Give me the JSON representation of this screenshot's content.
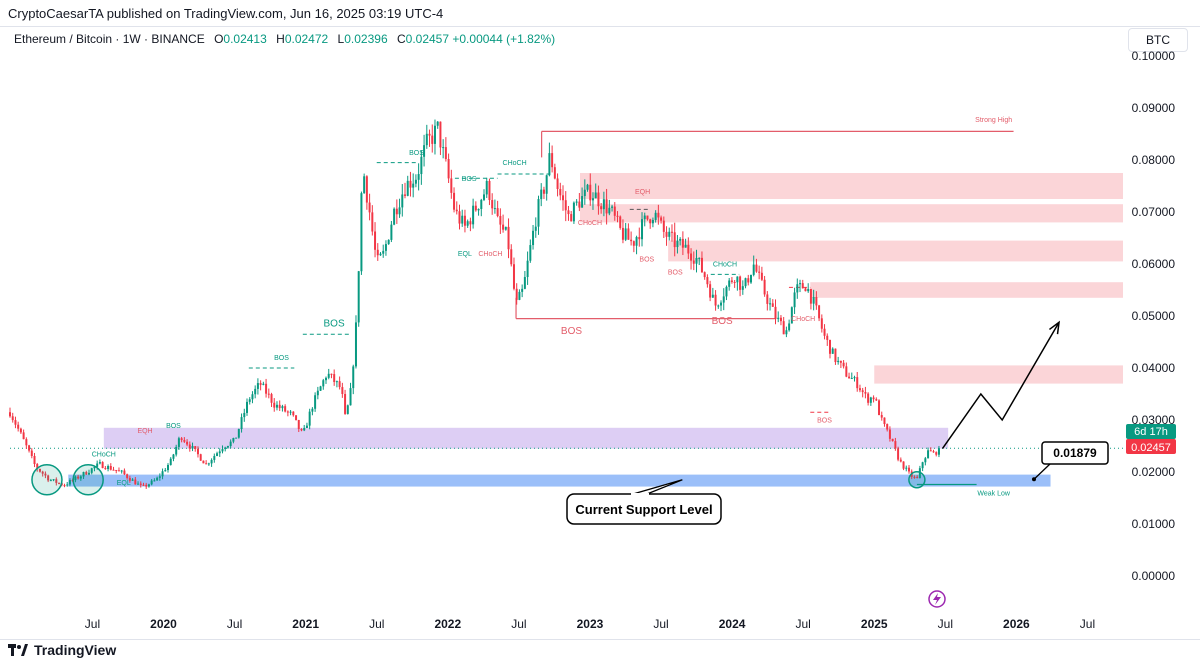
{
  "publish_line": "CryptoCaesarTA published on TradingView.com, Jun 16, 2025 03:19 UTC-4",
  "legend": {
    "symbol": "Ethereum / Bitcoin · 1W · BINANCE",
    "o_label": "O",
    "o": "0.02413",
    "h_label": "H",
    "h": "0.02472",
    "l_label": "L",
    "l": "0.02396",
    "c_label": "C",
    "c": "0.02457",
    "change": "+0.00044 (+1.82%)"
  },
  "currency": "BTC",
  "footer": {
    "brand": "TradingView"
  },
  "colors": {
    "up": "#089981",
    "down": "#f23645",
    "supply": "#fbd5d8",
    "purple": "#d7c6f2",
    "blue": "#8ab4f8",
    "bos_line": "#e35d6a"
  },
  "chart_data": {
    "type": "candlestick",
    "y_axis": {
      "min": 0.0,
      "max": 0.1,
      "ticks": [
        "0.00000",
        "0.01000",
        "0.02000",
        "0.03000",
        "0.04000",
        "0.05000",
        "0.06000",
        "0.07000",
        "0.08000",
        "0.09000",
        "0.10000"
      ]
    },
    "x_axis": {
      "labels": [
        "Jul",
        "2020",
        "Jul",
        "2021",
        "Jul",
        "2022",
        "Jul",
        "2023",
        "Jul",
        "2024",
        "Jul",
        "2025",
        "Jul",
        "2026",
        "Jul"
      ],
      "bold": [
        "2020",
        "2021",
        "2022",
        "2023",
        "2024",
        "2025",
        "2026"
      ],
      "x": [
        2019.5,
        2020.0,
        2020.5,
        2021.0,
        2021.5,
        2022.0,
        2022.5,
        2023.0,
        2023.5,
        2024.0,
        2024.5,
        2025.0,
        2025.5,
        2026.0,
        2026.5
      ]
    },
    "price_path": [
      [
        2018.92,
        0.0315
      ],
      [
        2019.0,
        0.027
      ],
      [
        2019.1,
        0.021
      ],
      [
        2019.2,
        0.0185
      ],
      [
        2019.3,
        0.0175
      ],
      [
        2019.4,
        0.019
      ],
      [
        2019.55,
        0.0215
      ],
      [
        2019.7,
        0.02
      ],
      [
        2019.85,
        0.017
      ],
      [
        2019.95,
        0.0185
      ],
      [
        2020.05,
        0.022
      ],
      [
        2020.12,
        0.027
      ],
      [
        2020.22,
        0.024
      ],
      [
        2020.3,
        0.0215
      ],
      [
        2020.42,
        0.025
      ],
      [
        2020.5,
        0.026
      ],
      [
        2020.6,
        0.034
      ],
      [
        2020.68,
        0.037
      ],
      [
        2020.78,
        0.033
      ],
      [
        2020.9,
        0.031
      ],
      [
        2020.98,
        0.027
      ],
      [
        2021.05,
        0.033
      ],
      [
        2021.15,
        0.039
      ],
      [
        2021.25,
        0.036
      ],
      [
        2021.28,
        0.03
      ],
      [
        2021.32,
        0.036
      ],
      [
        2021.36,
        0.05
      ],
      [
        2021.4,
        0.079
      ],
      [
        2021.45,
        0.07
      ],
      [
        2021.5,
        0.06
      ],
      [
        2021.55,
        0.062
      ],
      [
        2021.62,
        0.07
      ],
      [
        2021.7,
        0.075
      ],
      [
        2021.78,
        0.077
      ],
      [
        2021.85,
        0.083
      ],
      [
        2021.93,
        0.086
      ],
      [
        2022.0,
        0.077
      ],
      [
        2022.05,
        0.07
      ],
      [
        2022.12,
        0.067
      ],
      [
        2022.2,
        0.071
      ],
      [
        2022.28,
        0.075
      ],
      [
        2022.35,
        0.068
      ],
      [
        2022.42,
        0.065
      ],
      [
        2022.48,
        0.052
      ],
      [
        2022.53,
        0.055
      ],
      [
        2022.58,
        0.063
      ],
      [
        2022.62,
        0.069
      ],
      [
        2022.68,
        0.075
      ],
      [
        2022.72,
        0.081
      ],
      [
        2022.78,
        0.074
      ],
      [
        2022.85,
        0.069
      ],
      [
        2022.92,
        0.072
      ],
      [
        2023.0,
        0.074
      ],
      [
        2023.08,
        0.072
      ],
      [
        2023.15,
        0.07
      ],
      [
        2023.22,
        0.066
      ],
      [
        2023.3,
        0.064
      ],
      [
        2023.38,
        0.068
      ],
      [
        2023.45,
        0.07
      ],
      [
        2023.52,
        0.066
      ],
      [
        2023.6,
        0.064
      ],
      [
        2023.68,
        0.063
      ],
      [
        2023.75,
        0.061
      ],
      [
        2023.82,
        0.057
      ],
      [
        2023.88,
        0.052
      ],
      [
        2023.95,
        0.055
      ],
      [
        2024.02,
        0.058
      ],
      [
        2024.08,
        0.055
      ],
      [
        2024.15,
        0.06
      ],
      [
        2024.22,
        0.055
      ],
      [
        2024.3,
        0.05
      ],
      [
        2024.38,
        0.047
      ],
      [
        2024.45,
        0.055
      ],
      [
        2024.52,
        0.056
      ],
      [
        2024.58,
        0.052
      ],
      [
        2024.65,
        0.046
      ],
      [
        2024.72,
        0.042
      ],
      [
        2024.8,
        0.039
      ],
      [
        2024.88,
        0.037
      ],
      [
        2024.95,
        0.034
      ],
      [
        2025.0,
        0.0345
      ],
      [
        2025.05,
        0.03
      ],
      [
        2025.12,
        0.026
      ],
      [
        2025.18,
        0.022
      ],
      [
        2025.25,
        0.0195
      ],
      [
        2025.3,
        0.0185
      ],
      [
        2025.34,
        0.022
      ],
      [
        2025.38,
        0.024
      ],
      [
        2025.42,
        0.0235
      ],
      [
        2025.46,
        0.0245
      ]
    ],
    "last_price": "0.02457",
    "countdown": "6d 17h",
    "target_label": "0.01879",
    "callout": "Current Support Level",
    "annotations": [
      {
        "text": "Strong High",
        "x": 2025.84,
        "y": 0.0873,
        "color": "red"
      },
      {
        "text": "BOS",
        "x": 2022.87,
        "y": 0.0465,
        "color": "red"
      },
      {
        "text": "Weak Low",
        "x": 2025.84,
        "y": 0.0155,
        "color": "green"
      },
      {
        "text": "BOS",
        "x": 2021.78,
        "y": 0.081,
        "color": "green"
      },
      {
        "text": "BOS",
        "x": 2022.15,
        "y": 0.076,
        "color": "green"
      },
      {
        "text": "CHoCH",
        "x": 2022.47,
        "y": 0.079,
        "color": "green"
      },
      {
        "text": "EQL",
        "x": 2022.12,
        "y": 0.0615,
        "color": "green"
      },
      {
        "text": "CHoCH",
        "x": 2022.3,
        "y": 0.0615,
        "color": "red"
      },
      {
        "text": "EQH",
        "x": 2023.37,
        "y": 0.0735,
        "color": "red"
      },
      {
        "text": "CHoCH",
        "x": 2023.0,
        "y": 0.0675,
        "color": "red"
      },
      {
        "text": "BOS",
        "x": 2023.4,
        "y": 0.0605,
        "color": "red"
      },
      {
        "text": "BOS",
        "x": 2023.6,
        "y": 0.058,
        "color": "red"
      },
      {
        "text": "CHoCH",
        "x": 2023.95,
        "y": 0.0595,
        "color": "green"
      },
      {
        "text": "BOS",
        "x": 2023.93,
        "y": 0.0485,
        "color": "red"
      },
      {
        "text": "CHoCH",
        "x": 2024.5,
        "y": 0.049,
        "color": "red"
      },
      {
        "text": "BOS",
        "x": 2024.65,
        "y": 0.0295,
        "color": "red"
      },
      {
        "text": "BOS",
        "x": 2020.83,
        "y": 0.0415,
        "color": "green"
      },
      {
        "text": "BOS",
        "x": 2021.2,
        "y": 0.048,
        "color": "green"
      },
      {
        "text": "EQH",
        "x": 2019.87,
        "y": 0.0275,
        "color": "red"
      },
      {
        "text": "BOS",
        "x": 2020.07,
        "y": 0.0285,
        "color": "green"
      },
      {
        "text": "CHoCH",
        "x": 2019.58,
        "y": 0.023,
        "color": "green"
      },
      {
        "text": "EQL",
        "x": 2019.72,
        "y": 0.0175,
        "color": "green"
      }
    ]
  }
}
